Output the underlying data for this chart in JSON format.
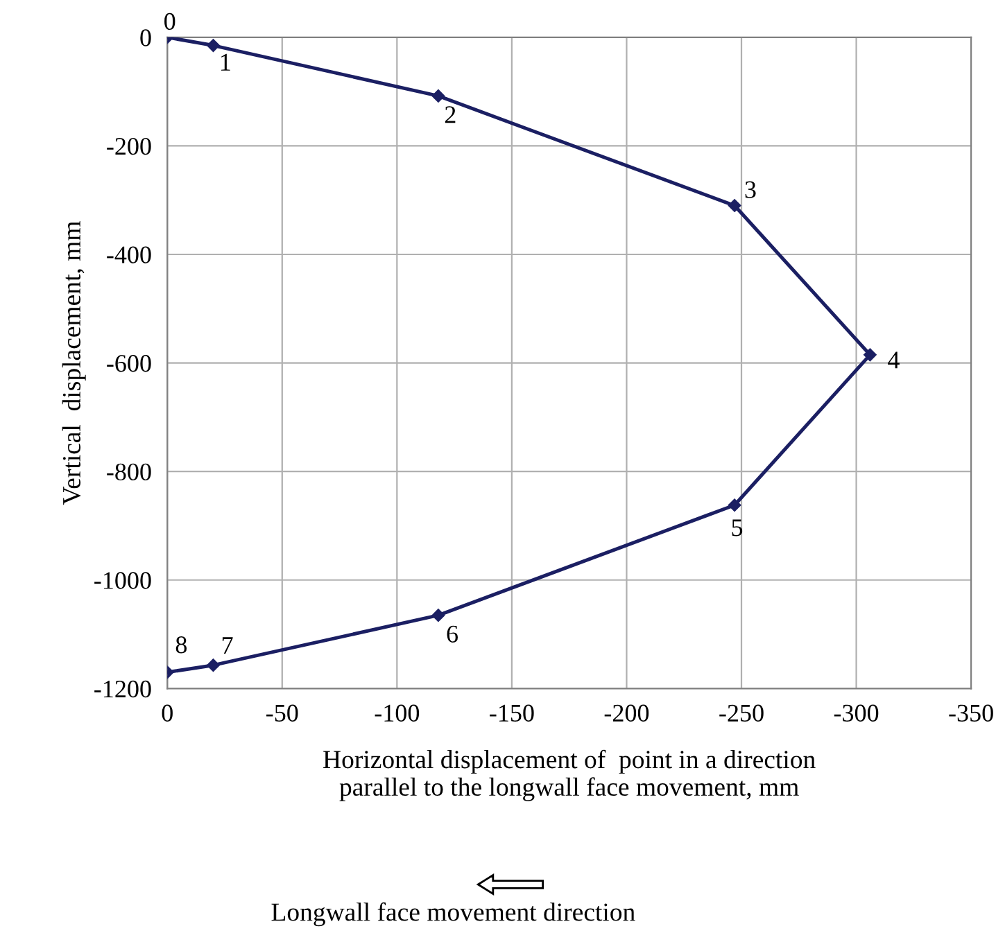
{
  "chart_data": {
    "type": "line",
    "xlabel": "Horizontal displacement of  point in a direction\nparallel to the longwall face movement, mm",
    "ylabel": "Vertical  displacement, mm",
    "x": [
      0,
      -20,
      -118,
      -247,
      -306,
      -247,
      -118,
      -20,
      0
    ],
    "series": [
      {
        "color": "#1b1f63",
        "values": [
          0,
          -15,
          -108,
          -310,
          -585,
          -862,
          -1065,
          -1157,
          -1170
        ]
      }
    ],
    "xlim": [
      0,
      -350
    ],
    "xticks": [
      0,
      -50,
      -100,
      -150,
      -200,
      -250,
      -300,
      -350
    ],
    "ylim": [
      -1200,
      0
    ],
    "yticks": [
      -1200,
      -1000,
      -800,
      -600,
      -400,
      -200,
      0
    ],
    "grid": true,
    "marker": "diamond",
    "line_style": "solid",
    "annotations": [
      {
        "text": "0",
        "x": 0,
        "y": 0
      },
      {
        "text": "1",
        "x": -20,
        "y": -15
      },
      {
        "text": "2",
        "x": -118,
        "y": -108
      },
      {
        "text": "3",
        "x": -247,
        "y": -310
      },
      {
        "text": "4",
        "x": -306,
        "y": -585
      },
      {
        "text": "5",
        "x": -247,
        "y": -862
      },
      {
        "text": "6",
        "x": -118,
        "y": -1065
      },
      {
        "text": "7",
        "x": -20,
        "y": -1157
      },
      {
        "text": "8",
        "x": 0,
        "y": -1170
      },
      "Longwall face movement direction"
    ]
  }
}
